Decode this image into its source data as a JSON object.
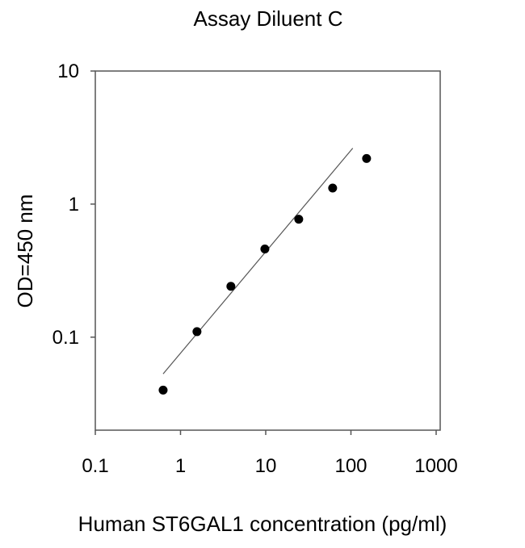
{
  "chart_data": {
    "type": "scatter",
    "title": "Assay Diluent C",
    "xlabel": "Human ST6GAL1 concentration (pg/ml)",
    "ylabel": "OD=450 nm",
    "xscale": "log",
    "yscale": "log",
    "xlim": [
      0.1,
      1000
    ],
    "ylim": [
      0.02,
      10
    ],
    "xticks": [
      0.1,
      1,
      10,
      100,
      1000
    ],
    "xtick_labels": [
      "0.1",
      "1",
      "10",
      "100",
      "1000"
    ],
    "yticks": [
      0.1,
      1,
      10
    ],
    "ytick_labels": [
      "0.1",
      "1",
      "10"
    ],
    "grid": false,
    "points": [
      {
        "x": 0.625,
        "y": 0.04
      },
      {
        "x": 1.56,
        "y": 0.11
      },
      {
        "x": 3.9,
        "y": 0.241
      },
      {
        "x": 9.77,
        "y": 0.46
      },
      {
        "x": 24.4,
        "y": 0.77
      },
      {
        "x": 61,
        "y": 1.32
      },
      {
        "x": 152.6,
        "y": 2.2
      }
    ],
    "fit_line": [
      {
        "x": 0.625,
        "y": 0.053
      },
      {
        "x": 105,
        "y": 2.63
      }
    ],
    "colors": {
      "points": "#000000",
      "line": "#555555",
      "axes": "#555555"
    }
  }
}
